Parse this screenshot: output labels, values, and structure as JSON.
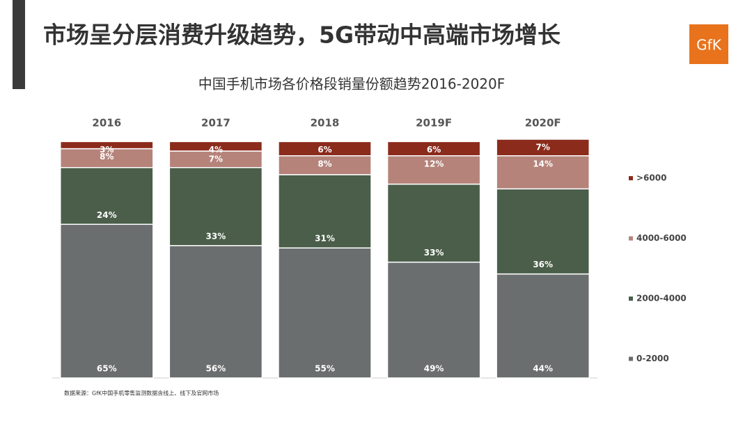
{
  "slide_title": "市场呈分层消费升级趋势，5G带动中高端市场增长",
  "logo": "GfK",
  "source": "数据来源：GfK中国手机零售监测数据含线上、线下及官网市场",
  "chart_data": {
    "type": "stacked_bar",
    "title": "中国手机市场各价格段销量份额趋势2016-2020F",
    "categories": [
      "2016",
      "2017",
      "2018",
      "2019F",
      "2020F"
    ],
    "series": [
      {
        "name": "0-2000",
        "color": "#6b6e6e",
        "values": [
          65,
          56,
          55,
          49,
          44
        ],
        "value_labels": [
          "65%",
          "56%",
          "55%",
          "49%",
          "44%"
        ]
      },
      {
        "name": "2000-4000",
        "color": "#4a5e49",
        "values": [
          24,
          33,
          31,
          33,
          36
        ],
        "value_labels": [
          "24%",
          "33%",
          "31%",
          "33%",
          "36%"
        ]
      },
      {
        "name": "4000-6000",
        "color": "#b5837a",
        "values": [
          8,
          7,
          8,
          12,
          14
        ],
        "value_labels": [
          "8%",
          "7%",
          "8%",
          "12%",
          "14%"
        ]
      },
      {
        "name": ">6000",
        "color": "#8b2b1c",
        "values": [
          3,
          4,
          6,
          6,
          7
        ],
        "value_labels": [
          "3%",
          "4%",
          "6%",
          "6%",
          "7%"
        ]
      }
    ],
    "ylim": [
      0,
      101
    ],
    "legend": "right"
  }
}
